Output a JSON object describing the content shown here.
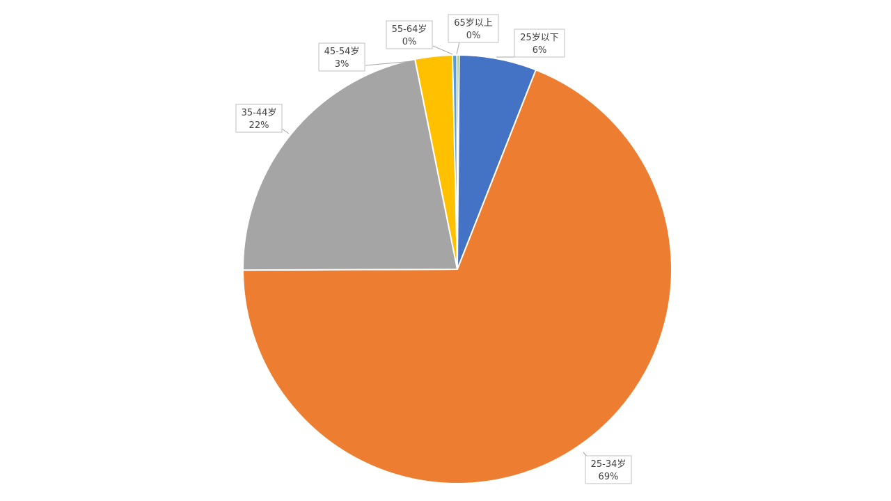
{
  "colors": {
    "background": "#ffffff",
    "slice_under_25": "#4472c4",
    "slice_25_34": "#ed7d31",
    "slice_35_44": "#a5a5a5",
    "slice_45_54": "#ffc000",
    "slice_55_64": "#5b9bd5",
    "slice_65_plus": "#70ad47",
    "label_border": "#bfbfbf",
    "label_text": "#404040",
    "leader_line": "#a6a6a6"
  },
  "chart_data": {
    "type": "pie",
    "title": "",
    "direction": "clockwise from 12 o'clock",
    "grid": false,
    "legend": "none",
    "series": [
      {
        "values": [
          {
            "category": "25岁以下",
            "value": 6,
            "label_percent": "6%"
          },
          {
            "category": "25-34岁",
            "value": 69,
            "label_percent": "69%"
          },
          {
            "category": "35-44岁",
            "value": 22,
            "label_percent": "22%"
          },
          {
            "category": "45-54岁",
            "value": 3,
            "label_percent": "3%"
          },
          {
            "category": "55-64岁",
            "value": 0,
            "label_percent": "0%"
          },
          {
            "category": "65岁以上",
            "value": 0,
            "label_percent": "0%"
          }
        ]
      }
    ]
  }
}
